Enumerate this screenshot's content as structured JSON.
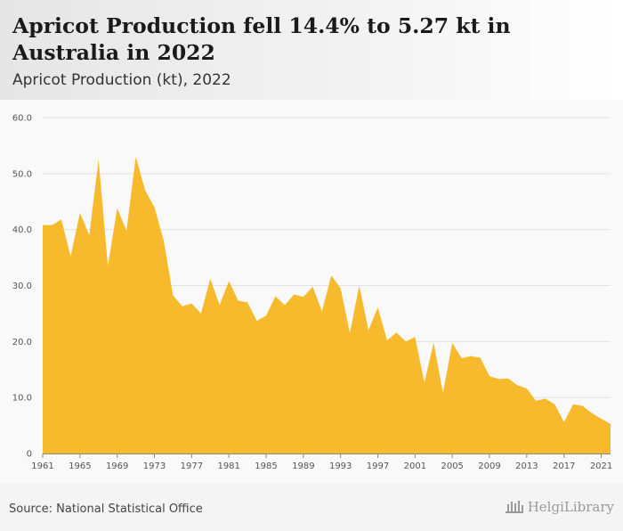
{
  "title": "Apricot Production fell 14.4% to 5.27 kt in Australia in 2022",
  "subtitle": "Apricot Production (kt), 2022",
  "source": "Source: National Statistical Office",
  "logo_text": "HelgiLibrary",
  "colors": {
    "area": "#f7ba2c",
    "grid": "#e2e2e2",
    "axis": "#888888"
  },
  "chart_data": {
    "type": "area",
    "title": "Apricot Production fell 14.4% to 5.27 kt in Australia in 2022",
    "subtitle": "Apricot Production (kt), 2022",
    "xlabel": "",
    "ylabel": "",
    "ylim": [
      0,
      60
    ],
    "yticks": [
      "0",
      "10.0",
      "20.0",
      "30.0",
      "40.0",
      "50.0",
      "60.0"
    ],
    "xticks": [
      "1961",
      "1965",
      "1969",
      "1973",
      "1977",
      "1981",
      "1985",
      "1989",
      "1993",
      "1997",
      "2001",
      "2005",
      "2009",
      "2013",
      "2017",
      "2021"
    ],
    "grid": true,
    "x": [
      1961,
      1962,
      1963,
      1964,
      1965,
      1966,
      1967,
      1968,
      1969,
      1970,
      1971,
      1972,
      1973,
      1974,
      1975,
      1976,
      1977,
      1978,
      1979,
      1980,
      1981,
      1982,
      1983,
      1984,
      1985,
      1986,
      1987,
      1988,
      1989,
      1990,
      1991,
      1992,
      1993,
      1994,
      1995,
      1996,
      1997,
      1998,
      1999,
      2000,
      2001,
      2002,
      2003,
      2004,
      2005,
      2006,
      2007,
      2008,
      2009,
      2010,
      2011,
      2012,
      2013,
      2014,
      2015,
      2016,
      2017,
      2018,
      2019,
      2020,
      2021,
      2022
    ],
    "values": [
      40.8,
      40.8,
      41.8,
      35.2,
      43.0,
      39.0,
      52.5,
      33.5,
      43.8,
      39.8,
      53.0,
      47.0,
      44.0,
      38.0,
      28.2,
      26.3,
      26.8,
      25.0,
      31.2,
      26.5,
      30.8,
      27.3,
      27.0,
      23.7,
      24.6,
      28.1,
      26.5,
      28.4,
      28.0,
      29.8,
      25.4,
      31.8,
      29.5,
      21.5,
      30.0,
      22.0,
      26.1,
      20.2,
      21.6,
      20.0,
      20.8,
      12.7,
      19.8,
      10.8,
      19.8,
      17.0,
      17.4,
      17.1,
      13.8,
      13.3,
      13.4,
      12.2,
      11.6,
      9.4,
      9.8,
      8.8,
      5.6,
      8.8,
      8.5,
      7.2,
      6.2,
      5.27
    ]
  }
}
